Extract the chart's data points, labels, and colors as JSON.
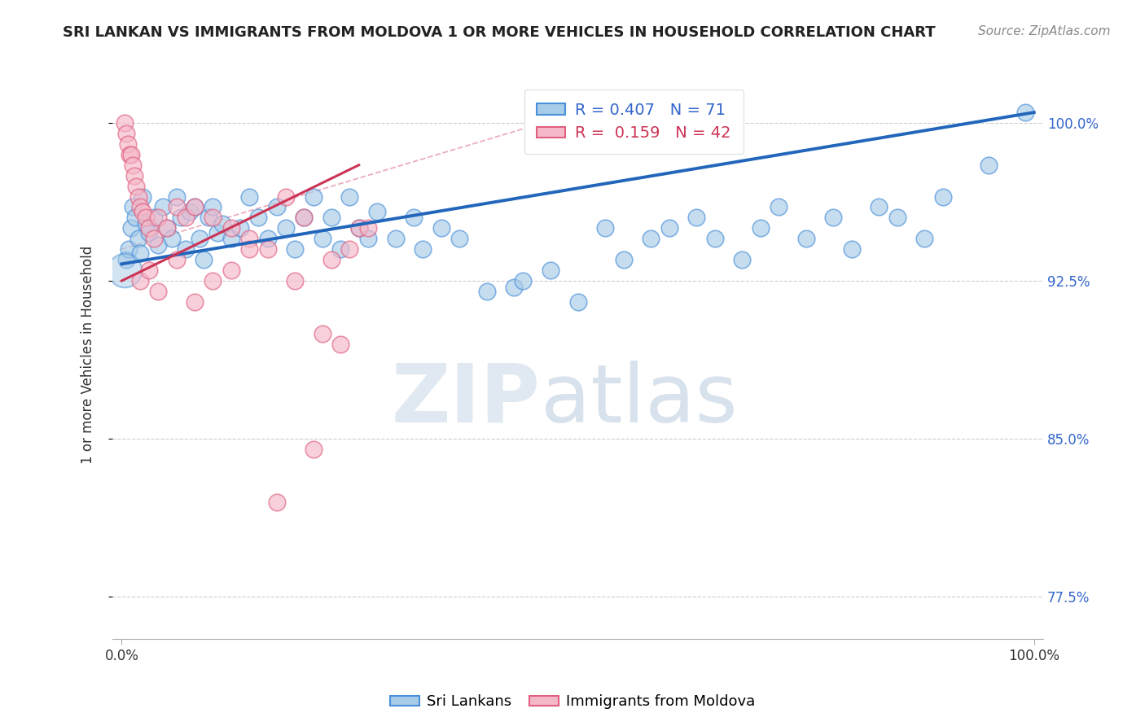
{
  "title": "SRI LANKAN VS IMMIGRANTS FROM MOLDOVA 1 OR MORE VEHICLES IN HOUSEHOLD CORRELATION CHART",
  "source": "Source: ZipAtlas.com",
  "ylabel": "1 or more Vehicles in Household",
  "xlim": [
    -1,
    101
  ],
  "ylim": [
    75.5,
    102.5
  ],
  "yticks": [
    77.5,
    85.0,
    92.5,
    100.0
  ],
  "xticks": [
    0.0,
    100.0
  ],
  "xticklabels": [
    "0.0%",
    "100.0%"
  ],
  "yticklabels": [
    "77.5%",
    "85.0%",
    "92.5%",
    "100.0%"
  ],
  "blue_R": 0.407,
  "blue_N": 71,
  "pink_R": 0.159,
  "pink_N": 42,
  "blue_face_color": "#a8cce8",
  "blue_edge_color": "#4a90d9",
  "pink_face_color": "#f5b8c8",
  "pink_edge_color": "#e06080",
  "blue_line_color": "#2266bb",
  "pink_line_color": "#cc3355",
  "legend_blue_label": "Sri Lankans",
  "legend_pink_label": "Immigrants from Moldova",
  "watermark_zip": "ZIP",
  "watermark_atlas": "atlas",
  "title_fontsize": 13,
  "source_fontsize": 11,
  "tick_fontsize": 12,
  "legend_fontsize": 13,
  "ylabel_fontsize": 12,
  "blue_points_x": [
    0.5,
    0.8,
    1.0,
    1.2,
    1.5,
    1.8,
    2.0,
    2.3,
    2.6,
    3.0,
    3.5,
    4.0,
    4.5,
    5.0,
    5.5,
    6.0,
    6.5,
    7.0,
    7.5,
    8.0,
    8.5,
    9.0,
    9.5,
    10.0,
    10.5,
    11.0,
    12.0,
    13.0,
    14.0,
    15.0,
    16.0,
    17.0,
    18.0,
    19.0,
    20.0,
    21.0,
    22.0,
    23.0,
    24.0,
    25.0,
    26.0,
    27.0,
    28.0,
    30.0,
    32.0,
    33.0,
    35.0,
    37.0,
    40.0,
    43.0,
    44.0,
    47.0,
    50.0,
    53.0,
    55.0,
    58.0,
    60.0,
    63.0,
    65.0,
    68.0,
    70.0,
    72.0,
    75.0,
    78.0,
    80.0,
    83.0,
    85.0,
    88.0,
    90.0,
    95.0,
    99.0
  ],
  "blue_points_y": [
    93.5,
    94.0,
    95.0,
    96.0,
    95.5,
    94.5,
    93.8,
    96.5,
    95.2,
    94.8,
    95.5,
    94.2,
    96.0,
    95.0,
    94.5,
    96.5,
    95.5,
    94.0,
    95.8,
    96.0,
    94.5,
    93.5,
    95.5,
    96.0,
    94.8,
    95.2,
    94.5,
    95.0,
    96.5,
    95.5,
    94.5,
    96.0,
    95.0,
    94.0,
    95.5,
    96.5,
    94.5,
    95.5,
    94.0,
    96.5,
    95.0,
    94.5,
    95.8,
    94.5,
    95.5,
    94.0,
    95.0,
    94.5,
    92.0,
    92.2,
    92.5,
    93.0,
    91.5,
    95.0,
    93.5,
    94.5,
    95.0,
    95.5,
    94.5,
    93.5,
    95.0,
    96.0,
    94.5,
    95.5,
    94.0,
    96.0,
    95.5,
    94.5,
    96.5,
    98.0,
    100.5
  ],
  "blue_large_x": [
    0.3
  ],
  "blue_large_y": [
    93.5
  ],
  "pink_points_x": [
    0.3,
    0.5,
    0.7,
    0.9,
    1.0,
    1.2,
    1.4,
    1.6,
    1.8,
    2.0,
    2.3,
    2.6,
    3.0,
    3.5,
    4.0,
    5.0,
    6.0,
    7.0,
    8.0,
    10.0,
    12.0,
    14.0,
    16.0,
    18.0,
    20.0,
    22.0,
    24.0,
    26.0,
    2.0,
    3.0,
    4.0,
    6.0,
    8.0,
    10.0,
    12.0,
    14.0,
    17.0,
    19.0,
    21.0,
    23.0,
    25.0,
    27.0
  ],
  "pink_points_y": [
    100.0,
    99.5,
    99.0,
    98.5,
    98.5,
    98.0,
    97.5,
    97.0,
    96.5,
    96.0,
    95.8,
    95.5,
    95.0,
    94.5,
    95.5,
    95.0,
    96.0,
    95.5,
    96.0,
    95.5,
    95.0,
    94.5,
    94.0,
    96.5,
    95.5,
    90.0,
    89.5,
    95.0,
    92.5,
    93.0,
    92.0,
    93.5,
    91.5,
    92.5,
    93.0,
    94.0,
    82.0,
    92.5,
    84.5,
    93.5,
    94.0,
    95.0
  ]
}
